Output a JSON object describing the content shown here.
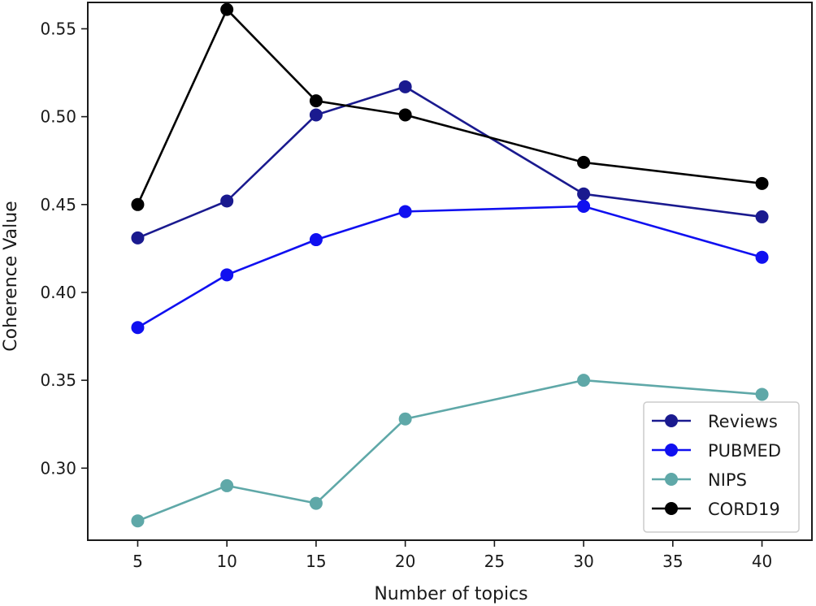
{
  "chart_data": {
    "type": "line",
    "xlabel": "Number of topics",
    "ylabel": "Coherence Value",
    "x": [
      5,
      10,
      15,
      20,
      30,
      40
    ],
    "xlim": [
      2.2,
      42.8
    ],
    "ylim": [
      0.259,
      0.565
    ],
    "xticks": [
      5,
      10,
      15,
      20,
      25,
      30,
      35,
      40
    ],
    "yticks": [
      0.3,
      0.35,
      0.4,
      0.45,
      0.5,
      0.55
    ],
    "ytick_labels": [
      "0.30",
      "0.35",
      "0.40",
      "0.45",
      "0.50",
      "0.55"
    ],
    "grid": false,
    "legend_position": "lower right",
    "series": [
      {
        "name": "Reviews",
        "color": "#1a1a8f",
        "values": [
          0.431,
          0.452,
          0.501,
          0.517,
          0.456,
          0.443
        ]
      },
      {
        "name": "PUBMED",
        "color": "#1010f0",
        "values": [
          0.38,
          0.41,
          0.43,
          0.446,
          0.449,
          0.42
        ]
      },
      {
        "name": "NIPS",
        "color": "#5fa8a8",
        "values": [
          0.27,
          0.29,
          0.28,
          0.328,
          0.35,
          0.342
        ]
      },
      {
        "name": "CORD19",
        "color": "#000000",
        "values": [
          0.45,
          0.561,
          0.509,
          0.501,
          0.474,
          0.462
        ]
      }
    ]
  }
}
